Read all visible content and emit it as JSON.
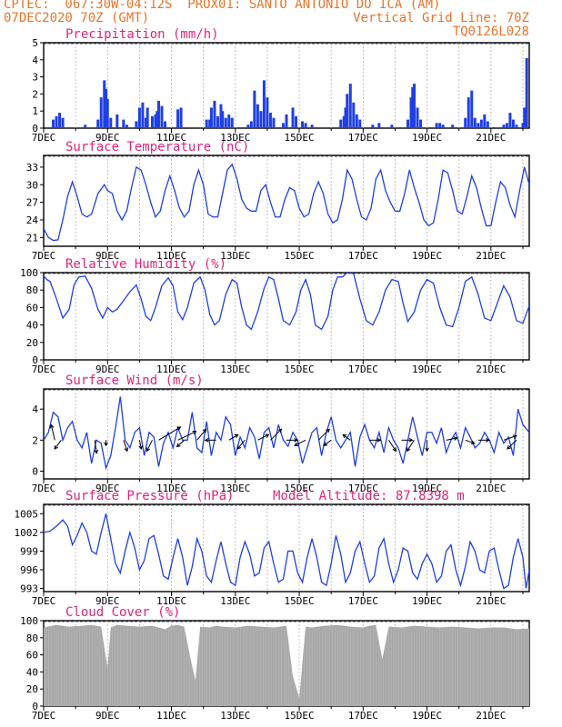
{
  "header": {
    "line1_left": "CPTEC:  067:30W-04:12S  PROX01: SANTO ANTONIO DO ICA (AM)",
    "line2_left": "07DEC2020 70Z (GMT)",
    "line2_right": "Vertical Grid Line: 70Z",
    "line3_right": "TQ0126L028"
  },
  "colors": {
    "header": "#e8742a",
    "title": "#e0247a",
    "series": "#1f3fe6",
    "cloud": "#a8a8a8"
  },
  "x_tick_labels": [
    "7DEC",
    "9DEC",
    "11DEC",
    "13DEC",
    "15DEC",
    "17DEC",
    "19DEC",
    "21DEC"
  ],
  "chart_data": [
    {
      "id": "precip",
      "type": "bar",
      "title": "Precipitation (mm/h)",
      "ylim": [
        0,
        5
      ],
      "yticks": [
        "0",
        "1",
        "2",
        "3",
        "4",
        "5"
      ],
      "x_range_days": [
        0,
        15.2
      ],
      "x": [
        0.3,
        0.4,
        0.5,
        0.6,
        1.3,
        1.7,
        1.8,
        1.9,
        1.95,
        2.0,
        2.1,
        2.3,
        2.5,
        2.6,
        2.9,
        3.0,
        3.1,
        3.2,
        3.25,
        3.4,
        3.5,
        3.55,
        3.6,
        3.7,
        3.8,
        4.2,
        4.3,
        5.1,
        5.2,
        5.25,
        5.35,
        5.45,
        5.55,
        5.6,
        5.7,
        5.8,
        5.9,
        6.4,
        6.5,
        6.6,
        6.7,
        6.8,
        6.9,
        7.0,
        7.1,
        7.2,
        7.5,
        7.6,
        7.8,
        7.9,
        8.1,
        8.2,
        8.4,
        9.3,
        9.4,
        9.45,
        9.5,
        9.6,
        9.7,
        9.8,
        9.9,
        10.3,
        10.5,
        10.9,
        11.4,
        11.5,
        11.55,
        11.6,
        11.7,
        11.8,
        12.3,
        12.4,
        12.5,
        12.8,
        13.2,
        13.3,
        13.4,
        13.5,
        13.6,
        13.7,
        13.8,
        13.9,
        14.4,
        14.5,
        14.6,
        14.7,
        14.8,
        15.0,
        15.05,
        15.12
      ],
      "values": [
        0.5,
        0.7,
        0.9,
        0.6,
        0.2,
        0.5,
        1.8,
        2.8,
        2.3,
        1.7,
        0.6,
        0.8,
        0.5,
        0.2,
        0.4,
        1.2,
        1.5,
        0.6,
        1.2,
        0.7,
        0.8,
        1.0,
        1.6,
        1.3,
        0.4,
        1.1,
        1.2,
        0.5,
        0.5,
        1.2,
        1.6,
        0.7,
        1.4,
        1.0,
        0.6,
        0.8,
        0.6,
        0.2,
        0.4,
        2.2,
        1.4,
        1.0,
        2.8,
        1.8,
        0.9,
        0.6,
        0.3,
        0.8,
        1.2,
        0.7,
        0.4,
        0.3,
        0.2,
        0.5,
        0.7,
        1.2,
        2.0,
        2.6,
        1.5,
        0.8,
        0.5,
        0.2,
        0.3,
        0.2,
        0.5,
        1.8,
        2.4,
        2.6,
        1.2,
        0.5,
        0.3,
        0.3,
        0.2,
        0.2,
        0.6,
        1.8,
        2.2,
        0.6,
        0.3,
        0.5,
        0.8,
        0.4,
        0.2,
        0.3,
        0.9,
        0.5,
        0.2,
        0.3,
        1.2,
        4.1
      ]
    },
    {
      "id": "temp",
      "type": "line",
      "title": "Surface Temperature (nC)",
      "ylim": [
        19.5,
        35
      ],
      "yticks": [
        "21",
        "24",
        "27",
        "30",
        "33"
      ],
      "x_range_days": [
        0,
        15.2
      ],
      "x": [
        0.0,
        0.15,
        0.3,
        0.45,
        0.6,
        0.75,
        0.9,
        1.05,
        1.2,
        1.35,
        1.5,
        1.7,
        1.9,
        2.0,
        2.15,
        2.3,
        2.45,
        2.6,
        2.75,
        2.9,
        3.05,
        3.2,
        3.35,
        3.5,
        3.65,
        3.8,
        3.95,
        4.1,
        4.25,
        4.4,
        4.55,
        4.7,
        4.85,
        5.0,
        5.15,
        5.3,
        5.45,
        5.6,
        5.75,
        5.9,
        6.05,
        6.2,
        6.35,
        6.5,
        6.65,
        6.8,
        6.95,
        7.1,
        7.25,
        7.4,
        7.55,
        7.7,
        7.85,
        8.0,
        8.15,
        8.3,
        8.45,
        8.6,
        8.75,
        8.9,
        9.05,
        9.2,
        9.35,
        9.5,
        9.65,
        9.8,
        9.95,
        10.1,
        10.25,
        10.4,
        10.55,
        10.7,
        10.85,
        11.0,
        11.15,
        11.3,
        11.45,
        11.6,
        11.75,
        11.9,
        12.05,
        12.2,
        12.35,
        12.5,
        12.65,
        12.8,
        12.95,
        13.1,
        13.25,
        13.4,
        13.55,
        13.7,
        13.85,
        14.0,
        14.15,
        14.3,
        14.45,
        14.6,
        14.75,
        14.9,
        15.05,
        15.2
      ],
      "values": [
        22.5,
        21.0,
        20.5,
        20.6,
        24.0,
        28.0,
        30.5,
        28.0,
        25.0,
        24.5,
        25.0,
        28.5,
        30.0,
        29.0,
        28.5,
        25.5,
        24.0,
        25.5,
        29.5,
        33.0,
        32.5,
        30.0,
        27.0,
        24.5,
        25.5,
        29.0,
        31.5,
        29.0,
        26.0,
        24.5,
        25.5,
        30.0,
        32.5,
        30.0,
        25.0,
        24.5,
        24.5,
        28.5,
        32.5,
        33.5,
        31.0,
        27.5,
        26.0,
        25.5,
        25.5,
        29.0,
        30.0,
        27.0,
        24.5,
        24.5,
        27.5,
        29.5,
        29.0,
        26.0,
        24.5,
        25.0,
        28.5,
        30.5,
        28.5,
        25.0,
        23.5,
        24.0,
        27.5,
        32.5,
        31.0,
        27.5,
        24.5,
        24.0,
        26.0,
        31.0,
        32.5,
        29.0,
        27.0,
        25.5,
        25.5,
        28.5,
        32.5,
        29.5,
        27.0,
        24.0,
        23.0,
        23.5,
        27.5,
        32.5,
        32.0,
        29.0,
        25.5,
        25.0,
        28.0,
        31.5,
        29.5,
        26.0,
        23.0,
        23.0,
        27.0,
        30.5,
        29.5,
        26.5,
        24.5,
        29.0,
        33.0,
        30.0
      ]
    },
    {
      "id": "rh",
      "type": "line",
      "title": "Relative Humidity (%)",
      "ylim": [
        0,
        100
      ],
      "yticks": [
        "0",
        "20",
        "40",
        "60",
        "80",
        "100"
      ],
      "x_range_days": [
        0,
        15.2
      ],
      "x": [
        0.0,
        0.1,
        0.2,
        0.4,
        0.6,
        0.8,
        0.95,
        1.1,
        1.3,
        1.5,
        1.7,
        1.85,
        2.0,
        2.15,
        2.3,
        2.5,
        2.7,
        2.9,
        3.05,
        3.2,
        3.35,
        3.5,
        3.7,
        3.9,
        4.05,
        4.2,
        4.35,
        4.5,
        4.7,
        4.9,
        5.05,
        5.2,
        5.35,
        5.5,
        5.7,
        5.9,
        6.05,
        6.2,
        6.35,
        6.5,
        6.7,
        6.9,
        7.05,
        7.2,
        7.35,
        7.5,
        7.7,
        7.9,
        8.05,
        8.2,
        8.35,
        8.5,
        8.7,
        8.9,
        9.05,
        9.2,
        9.35,
        9.5,
        9.7,
        9.9,
        10.1,
        10.3,
        10.5,
        10.7,
        10.9,
        11.1,
        11.25,
        11.4,
        11.6,
        11.8,
        12.0,
        12.2,
        12.4,
        12.6,
        12.8,
        13.0,
        13.2,
        13.4,
        13.6,
        13.8,
        14.0,
        14.2,
        14.4,
        14.6,
        14.8,
        15.0,
        15.2
      ],
      "values": [
        96,
        92,
        90,
        70,
        48,
        58,
        86,
        95,
        96,
        82,
        58,
        48,
        60,
        55,
        58,
        68,
        78,
        86,
        70,
        50,
        45,
        60,
        85,
        94,
        85,
        55,
        46,
        60,
        88,
        95,
        80,
        52,
        40,
        45,
        75,
        92,
        88,
        60,
        40,
        35,
        55,
        82,
        95,
        92,
        70,
        45,
        40,
        55,
        80,
        92,
        75,
        40,
        35,
        50,
        80,
        95,
        95,
        100,
        99,
        70,
        45,
        40,
        55,
        80,
        92,
        90,
        65,
        44,
        55,
        80,
        92,
        88,
        60,
        40,
        38,
        60,
        90,
        95,
        75,
        48,
        45,
        65,
        85,
        72,
        45,
        42,
        62
      ]
    },
    {
      "id": "wind",
      "type": "line",
      "title": "Surface Wind (m/s)",
      "ylim": [
        -0.5,
        5.3
      ],
      "yticks": [
        "0",
        "2",
        "4"
      ],
      "x_range_days": [
        0,
        15.2
      ],
      "x": [
        0.0,
        0.15,
        0.3,
        0.45,
        0.6,
        0.75,
        0.9,
        1.05,
        1.2,
        1.35,
        1.5,
        1.65,
        1.8,
        1.95,
        2.1,
        2.25,
        2.4,
        2.55,
        2.7,
        2.85,
        3.0,
        3.15,
        3.3,
        3.45,
        3.6,
        3.75,
        3.9,
        4.05,
        4.2,
        4.35,
        4.5,
        4.65,
        4.8,
        4.95,
        5.1,
        5.25,
        5.4,
        5.55,
        5.7,
        5.85,
        6.0,
        6.15,
        6.3,
        6.45,
        6.6,
        6.75,
        6.9,
        7.05,
        7.2,
        7.35,
        7.5,
        7.65,
        7.8,
        7.95,
        8.1,
        8.25,
        8.4,
        8.55,
        8.7,
        8.85,
        9.0,
        9.15,
        9.3,
        9.45,
        9.6,
        9.75,
        9.9,
        10.05,
        10.2,
        10.35,
        10.5,
        10.65,
        10.8,
        10.95,
        11.1,
        11.25,
        11.4,
        11.55,
        11.7,
        11.85,
        12.0,
        12.15,
        12.3,
        12.45,
        12.6,
        12.75,
        12.9,
        13.05,
        13.2,
        13.35,
        13.5,
        13.65,
        13.8,
        13.95,
        14.1,
        14.25,
        14.4,
        14.55,
        14.7,
        14.85,
        15.0,
        15.2
      ],
      "values": [
        2.0,
        2.5,
        3.8,
        3.5,
        2.0,
        2.8,
        3.2,
        2.0,
        1.5,
        2.5,
        0.5,
        2.0,
        1.8,
        0.2,
        1.0,
        2.8,
        4.8,
        2.0,
        1.5,
        2.5,
        2.8,
        1.0,
        2.5,
        2.2,
        0.3,
        1.8,
        2.5,
        1.5,
        2.8,
        2.0,
        2.0,
        3.8,
        1.5,
        1.2,
        3.2,
        1.0,
        2.5,
        2.0,
        3.5,
        3.0,
        1.0,
        2.2,
        1.5,
        2.8,
        2.2,
        0.8,
        2.5,
        2.8,
        1.5,
        3.0,
        2.0,
        1.6,
        2.5,
        2.0,
        0.5,
        1.5,
        2.5,
        2.8,
        1.0,
        2.5,
        3.5,
        2.0,
        1.5,
        2.0,
        2.5,
        0.3,
        2.2,
        3.0,
        2.0,
        1.5,
        2.5,
        1.2,
        2.8,
        2.0,
        1.5,
        0.5,
        2.0,
        3.5,
        2.2,
        1.0,
        2.5,
        2.5,
        1.8,
        2.8,
        1.2,
        2.0,
        2.5,
        1.5,
        2.8,
        2.2,
        1.5,
        1.8,
        2.5,
        2.0,
        1.2,
        2.5,
        1.8,
        2.2,
        1.0,
        4.0,
        3.0,
        2.5
      ],
      "arrows": [
        {
          "x": 0.35,
          "dx": -0.1,
          "dy": 1.4
        },
        {
          "x": 0.55,
          "dx": -0.18,
          "dy": -0.8
        },
        {
          "x": 1.6,
          "dx": 0.05,
          "dy": -1.2
        },
        {
          "x": 1.95,
          "dx": 0.0,
          "dy": -0.5
        },
        {
          "x": 2.5,
          "dx": 0.1,
          "dy": -1.0
        },
        {
          "x": 3.0,
          "dx": 0.05,
          "dy": -0.8
        },
        {
          "x": 3.4,
          "dx": -0.15,
          "dy": -1.0
        },
        {
          "x": 3.6,
          "dx": 0.6,
          "dy": 1.2
        },
        {
          "x": 4.2,
          "dx": 0.5,
          "dy": 0.8
        },
        {
          "x": 4.4,
          "dx": -0.2,
          "dy": -0.6
        },
        {
          "x": 4.8,
          "dx": 0.25,
          "dy": 1.0
        },
        {
          "x": 5.4,
          "dx": -0.3,
          "dy": 0.0
        },
        {
          "x": 5.8,
          "dx": 0.25,
          "dy": 0.5
        },
        {
          "x": 6.3,
          "dx": -0.2,
          "dy": -0.8
        },
        {
          "x": 6.7,
          "dx": 0.3,
          "dy": 0.5
        },
        {
          "x": 7.1,
          "dx": 0.3,
          "dy": 1.0
        },
        {
          "x": 7.6,
          "dx": 0.3,
          "dy": 0.0
        },
        {
          "x": 8.2,
          "dx": -0.3,
          "dy": -0.5
        },
        {
          "x": 8.6,
          "dx": 0.3,
          "dy": 1.0
        },
        {
          "x": 9.0,
          "dx": -0.2,
          "dy": -0.5
        },
        {
          "x": 9.6,
          "dx": -0.2,
          "dy": 0.5
        },
        {
          "x": 10.2,
          "dx": 0.3,
          "dy": 0.0
        },
        {
          "x": 10.8,
          "dx": 0.2,
          "dy": -1.0
        },
        {
          "x": 11.2,
          "dx": 0.3,
          "dy": 0.0
        },
        {
          "x": 11.6,
          "dx": -0.2,
          "dy": -1.0
        },
        {
          "x": 12.0,
          "dx": 0.0,
          "dy": -1.0
        },
        {
          "x": 12.6,
          "dx": 0.3,
          "dy": 0.2
        },
        {
          "x": 13.2,
          "dx": 0.25,
          "dy": -0.3
        },
        {
          "x": 13.6,
          "dx": 0.3,
          "dy": 0.0
        },
        {
          "x": 14.4,
          "dx": 0.35,
          "dy": 0.4
        },
        {
          "x": 14.8,
          "dx": -0.25,
          "dy": -0.8
        }
      ]
    },
    {
      "id": "pres",
      "type": "line",
      "title": "Surface Pressure (hPa)",
      "annotation": "Model Altitude: 87.8398 m",
      "ylim": [
        992.5,
        1006.5
      ],
      "yticks": [
        "993",
        "996",
        "999",
        "1002",
        "1005"
      ],
      "x_range_days": [
        0,
        15.2
      ],
      "x": [
        0.0,
        0.2,
        0.4,
        0.6,
        0.75,
        0.9,
        1.05,
        1.2,
        1.35,
        1.5,
        1.65,
        1.8,
        1.95,
        2.1,
        2.25,
        2.4,
        2.55,
        2.7,
        2.85,
        3.0,
        3.15,
        3.3,
        3.45,
        3.6,
        3.75,
        3.9,
        4.05,
        4.2,
        4.35,
        4.5,
        4.65,
        4.8,
        4.95,
        5.1,
        5.25,
        5.4,
        5.55,
        5.7,
        5.85,
        6.0,
        6.15,
        6.3,
        6.45,
        6.6,
        6.75,
        6.9,
        7.05,
        7.2,
        7.35,
        7.5,
        7.65,
        7.8,
        7.95,
        8.1,
        8.25,
        8.4,
        8.55,
        8.7,
        8.85,
        9.0,
        9.15,
        9.3,
        9.45,
        9.6,
        9.75,
        9.9,
        10.05,
        10.2,
        10.35,
        10.5,
        10.65,
        10.8,
        10.95,
        11.1,
        11.25,
        11.4,
        11.55,
        11.7,
        11.85,
        12.0,
        12.15,
        12.3,
        12.45,
        12.6,
        12.75,
        12.9,
        13.05,
        13.2,
        13.35,
        13.5,
        13.65,
        13.8,
        13.95,
        14.1,
        14.25,
        14.4,
        14.55,
        14.7,
        14.85,
        15.0,
        15.1,
        15.2
      ],
      "values": [
        1002.0,
        1002.2,
        1003.0,
        1004.0,
        1003.0,
        1000.0,
        1001.5,
        1003.5,
        1002.0,
        999.0,
        998.5,
        1002.0,
        1005.0,
        1001.0,
        997.0,
        995.5,
        999.0,
        1002.0,
        999.5,
        996.0,
        997.5,
        1001.0,
        1001.5,
        998.5,
        995.0,
        994.5,
        998.0,
        1001.0,
        998.0,
        993.5,
        996.5,
        1001.0,
        999.0,
        995.0,
        994.0,
        997.5,
        1000.5,
        997.0,
        994.0,
        993.5,
        998.0,
        1000.5,
        998.5,
        995.0,
        995.5,
        999.5,
        1000.5,
        997.0,
        994.0,
        994.5,
        999.0,
        999.0,
        995.5,
        994.0,
        998.0,
        1001.0,
        998.0,
        994.0,
        993.5,
        997.0,
        1001.5,
        998.5,
        994.0,
        995.5,
        999.0,
        1000.5,
        997.0,
        994.0,
        995.0,
        999.5,
        1001.0,
        997.0,
        994.0,
        996.0,
        999.5,
        999.0,
        995.5,
        994.5,
        997.0,
        998.5,
        997.0,
        994.0,
        995.0,
        999.0,
        1000.0,
        996.0,
        993.5,
        996.5,
        1000.5,
        999.0,
        996.0,
        995.5,
        999.0,
        999.5,
        996.0,
        993.0,
        993.5,
        998.0,
        1001.0,
        998.0,
        993.0,
        996.0
      ]
    },
    {
      "id": "cloud",
      "type": "area",
      "title": "Cloud Cover (%)",
      "ylim": [
        0,
        100
      ],
      "yticks": [
        "0",
        "20",
        "40",
        "60",
        "80",
        "100"
      ],
      "x_range_days": [
        0,
        15.2
      ],
      "x": [
        0.0,
        0.4,
        0.8,
        1.2,
        1.5,
        1.8,
        2.0,
        2.1,
        2.3,
        2.6,
        3.0,
        3.4,
        3.8,
        4.0,
        4.2,
        4.4,
        4.6,
        4.75,
        4.9,
        5.2,
        5.4,
        5.6,
        6.0,
        6.4,
        6.8,
        7.2,
        7.6,
        7.8,
        8.0,
        8.2,
        8.4,
        8.8,
        9.2,
        9.6,
        10.0,
        10.2,
        10.4,
        10.6,
        10.8,
        11.2,
        11.6,
        12.0,
        12.4,
        12.8,
        13.2,
        13.6,
        14.0,
        14.4,
        14.8,
        15.2
      ],
      "values": [
        92,
        95,
        93,
        94,
        95,
        93,
        45,
        92,
        95,
        94,
        93,
        94,
        90,
        94,
        95,
        93,
        55,
        30,
        93,
        92,
        94,
        93,
        92,
        94,
        93,
        92,
        94,
        35,
        10,
        93,
        92,
        94,
        95,
        93,
        92,
        94,
        95,
        55,
        93,
        92,
        94,
        93,
        92,
        93,
        92,
        91,
        92,
        92,
        90,
        91
      ]
    }
  ]
}
